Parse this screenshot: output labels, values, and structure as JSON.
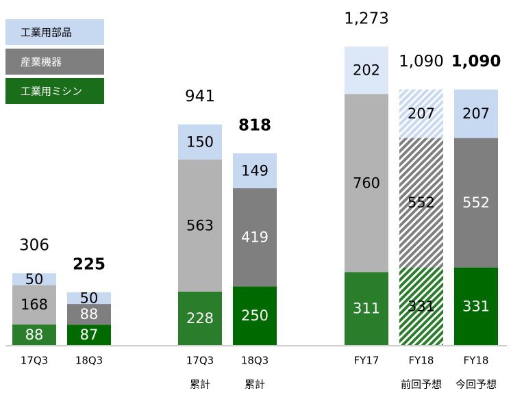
{
  "chart_data": {
    "type": "stacked_bar",
    "categories": [
      [
        "17Q3"
      ],
      [
        "18Q3"
      ],
      [
        "17Q3",
        "累計"
      ],
      [
        "18Q3",
        "累計"
      ],
      [
        "FY17"
      ],
      [
        "FY18",
        "前回予想"
      ],
      [
        "FY18",
        "今回予想"
      ]
    ],
    "series": [
      {
        "name": "工業用ミシン",
        "color": "#1a6e1a",
        "colors": [
          "#2a7d2a",
          "#006a00",
          "#2a7d2a",
          "#006a00",
          "#2a7d2a",
          "#2a7d2a",
          "#006a00"
        ],
        "values": [
          88,
          87,
          228,
          250,
          311,
          331,
          331
        ]
      },
      {
        "name": "産業機器",
        "color": "#7f7f7f",
        "colors": [
          "#b3b3b3",
          "#7f7f7f",
          "#b3b3b3",
          "#7f7f7f",
          "#b3b3b3",
          "#7f7f7f",
          "#7f7f7f"
        ],
        "values": [
          168,
          88,
          563,
          419,
          760,
          552,
          552
        ]
      },
      {
        "name": "工業用部品",
        "color": "#c6d9f1",
        "colors": [
          "#c6d9f1",
          "#c6d9f1",
          "#c6d9f1",
          "#c6d9f1",
          "#dce8f7",
          "#c6d9f1",
          "#c6d9f1"
        ],
        "values": [
          50,
          50,
          150,
          149,
          202,
          207,
          207
        ]
      }
    ],
    "totals": [
      306,
      225,
      941,
      818,
      1273,
      1090,
      1090
    ],
    "total_labels": [
      "306",
      "225",
      "941",
      "818",
      "1,273",
      "1,090",
      "1,090"
    ],
    "total_bold": [
      false,
      true,
      false,
      true,
      false,
      false,
      true
    ],
    "hatched": [
      false,
      false,
      false,
      false,
      false,
      true,
      false
    ]
  }
}
